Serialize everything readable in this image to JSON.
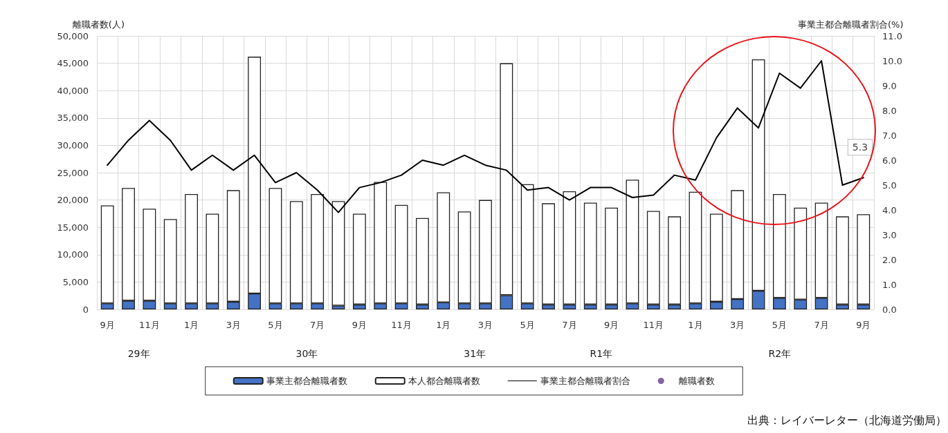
{
  "chart_data": {
    "type": "bar",
    "stacked": true,
    "ylabel": "離職者数(人)",
    "y2label": "事業主都合離職者割合(%)",
    "categories": [
      "9月",
      null,
      "11月",
      null,
      "1月",
      null,
      "3月",
      null,
      "5月",
      null,
      "7月",
      null,
      "9月",
      null,
      "11月",
      null,
      "1月",
      null,
      "3月",
      null,
      "5月",
      null,
      "7月",
      null,
      "9月",
      null,
      "11月",
      null,
      "1月",
      null,
      "3月",
      null,
      "5月",
      null,
      "7月",
      null,
      "9月"
    ],
    "series": [
      {
        "name": "事業主都合離職者数",
        "color": "#4472c4",
        "values": [
          1100,
          1600,
          1600,
          1100,
          1100,
          1100,
          1400,
          2900,
          1100,
          1100,
          1100,
          700,
          900,
          1100,
          1100,
          900,
          1300,
          1100,
          1100,
          2600,
          1100,
          900,
          900,
          900,
          900,
          1100,
          900,
          900,
          1100,
          1400,
          1900,
          3400,
          2100,
          1800,
          2100,
          900,
          900
        ]
      },
      {
        "name": "本人都合離職者数",
        "color": "#ffffff",
        "values": [
          17900,
          20600,
          16800,
          15400,
          20000,
          16400,
          20400,
          43300,
          21100,
          18700,
          20000,
          19100,
          16600,
          22200,
          18000,
          15800,
          20100,
          16800,
          18900,
          42400,
          21800,
          18500,
          20700,
          18600,
          17700,
          22600,
          17100,
          16100,
          20400,
          16100,
          19900,
          42300,
          19000,
          16800,
          17400,
          16100,
          16500
        ]
      },
      {
        "name": "事業主都合離職者割合",
        "type": "line",
        "axis": "y2",
        "color": "#000000",
        "values": [
          5.8,
          6.8,
          7.6,
          6.8,
          5.6,
          6.2,
          5.6,
          6.2,
          5.1,
          5.5,
          4.8,
          3.9,
          4.9,
          5.1,
          5.4,
          6.0,
          5.8,
          6.2,
          5.8,
          5.6,
          4.8,
          4.9,
          4.4,
          4.9,
          4.9,
          4.5,
          4.6,
          5.4,
          5.2,
          6.9,
          8.1,
          7.3,
          9.5,
          8.9,
          10.0,
          5.0,
          5.3
        ],
        "value_labels": [
          null,
          null,
          null,
          null,
          null,
          null,
          null,
          null,
          null,
          null,
          null,
          null,
          null,
          null,
          null,
          null,
          null,
          null,
          null,
          null,
          null,
          null,
          null,
          null,
          null,
          null,
          null,
          null,
          null,
          null,
          null,
          null,
          null,
          null,
          null,
          null,
          "5.3"
        ]
      },
      {
        "name": "離職者数",
        "type": "line",
        "color": "#8064a2",
        "marker": "circle",
        "values": [
          null,
          null,
          null,
          null,
          null,
          null,
          null,
          null,
          null,
          null,
          null,
          null,
          null,
          null,
          null,
          null,
          null,
          null,
          null,
          null,
          null,
          null,
          null,
          null,
          null,
          null,
          null,
          null,
          null,
          null,
          null,
          null,
          null,
          null,
          null,
          null,
          null
        ]
      }
    ],
    "ylim": [
      0,
      50000
    ],
    "yticks": [
      {
        "value": 0,
        "label": "0"
      },
      {
        "value": 5000,
        "label": "5,000"
      },
      {
        "value": 10000,
        "label": "10,000"
      },
      {
        "value": 15000,
        "label": "15,000"
      },
      {
        "value": 20000,
        "label": "20,000"
      },
      {
        "value": 25000,
        "label": "25,000"
      },
      {
        "value": 30000,
        "label": "30,000"
      },
      {
        "value": 35000,
        "label": "35,000"
      },
      {
        "value": 40000,
        "label": "40,000"
      },
      {
        "value": 45000,
        "label": "45,000"
      },
      {
        "value": 50000,
        "label": "50,000"
      }
    ],
    "y2lim": [
      0,
      11
    ],
    "y2ticks": [
      {
        "value": 0,
        "label": "0.0"
      },
      {
        "value": 1,
        "label": "1.0"
      },
      {
        "value": 2,
        "label": "2.0"
      },
      {
        "value": 3,
        "label": "3.0"
      },
      {
        "value": 4,
        "label": "4.0"
      },
      {
        "value": 5,
        "label": "5.0"
      },
      {
        "value": 6,
        "label": "6.0"
      },
      {
        "value": 7,
        "label": "7.0"
      },
      {
        "value": 8,
        "label": "8.0"
      },
      {
        "value": 9,
        "label": "9.0"
      },
      {
        "value": 10,
        "label": "10.0"
      },
      {
        "value": 11,
        "label": "11.0"
      }
    ],
    "grid": true,
    "legend": "bottom",
    "marker": "none",
    "line_style": "solid",
    "annotations": [
      "29年",
      "30年",
      "31年",
      "R1年",
      "R2年",
      "出典：レイバーレター（北海道労働局）"
    ]
  }
}
